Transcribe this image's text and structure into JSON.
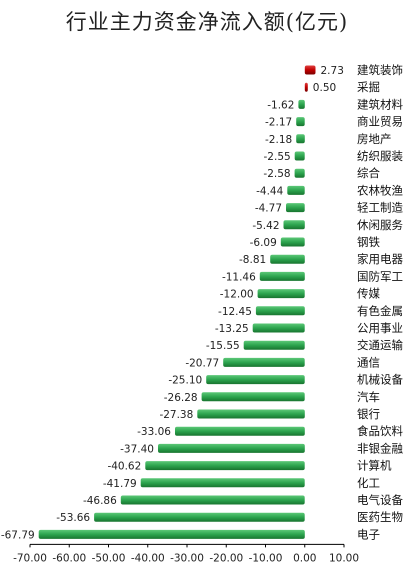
{
  "chart_data": {
    "type": "bar",
    "orientation": "horizontal",
    "title": "行业主力资金净流入额(亿元)",
    "categories": [
      "建筑装饰",
      "采掘",
      "建筑材料",
      "商业贸易",
      "房地产",
      "纺织服装",
      "综合",
      "农林牧渔",
      "轻工制造",
      "休闲服务",
      "钢铁",
      "家用电器",
      "国防军工",
      "传媒",
      "有色金属",
      "公用事业",
      "交通运输",
      "通信",
      "机械设备",
      "汽车",
      "银行",
      "食品饮料",
      "非银金融",
      "计算机",
      "化工",
      "电气设备",
      "医药生物",
      "电子"
    ],
    "values": [
      2.73,
      0.5,
      -1.62,
      -2.17,
      -2.18,
      -2.55,
      -2.58,
      -4.44,
      -4.77,
      -5.42,
      -6.09,
      -8.81,
      -11.46,
      -12.0,
      -12.45,
      -13.25,
      -15.55,
      -20.77,
      -25.1,
      -26.28,
      -27.38,
      -33.06,
      -37.4,
      -40.62,
      -41.79,
      -46.86,
      -53.66,
      -67.79
    ],
    "value_labels": [
      "2.73",
      "0.50",
      "-1.62",
      "-2.17",
      "-2.18",
      "-2.55",
      "-2.58",
      "-4.44",
      "-4.77",
      "-5.42",
      "-6.09",
      "-8.81",
      "-11.46",
      "-12.00",
      "-12.45",
      "-13.25",
      "-15.55",
      "-20.77",
      "-25.10",
      "-26.28",
      "-27.38",
      "-33.06",
      "-37.40",
      "-40.62",
      "-41.79",
      "-46.86",
      "-53.66",
      "-67.79"
    ],
    "xlim": [
      -70,
      10
    ],
    "x_ticks": [
      -70,
      -60,
      -50,
      -40,
      -30,
      -20,
      -10,
      0,
      10
    ],
    "x_tick_labels": [
      "-70.00",
      "-60.00",
      "-50.00",
      "-40.00",
      "-30.00",
      "-20.00",
      "-10.00",
      "0.00",
      "10.00"
    ],
    "grid": false,
    "legend": "none",
    "colors": {
      "positive": "#c00000",
      "negative": "#2ca44e"
    }
  }
}
